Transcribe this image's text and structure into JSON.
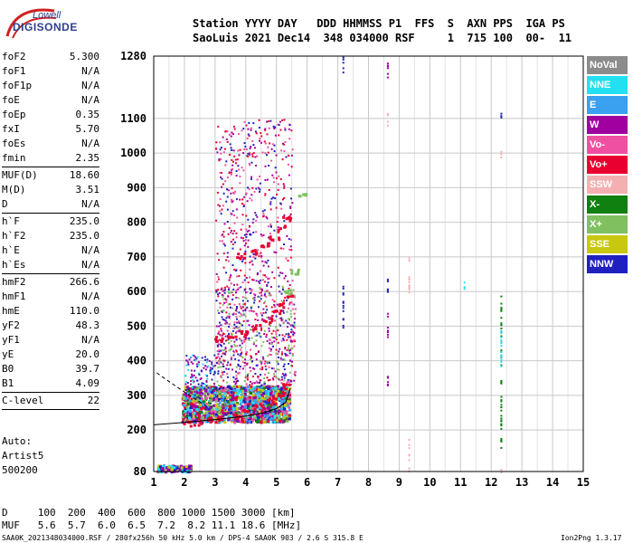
{
  "logo": {
    "line1": "Lowell",
    "line2": "DIGISONDE"
  },
  "header": {
    "line1": "Station YYYY DAY   DDD HHMMSS P1  FFS  S  AXN PPS  IGA PS",
    "line2": "SaoLuis 2021 Dec14  348 034000 RSF     1  715 100  00-  11"
  },
  "params": [
    {
      "label": "foF2",
      "value": "5.300"
    },
    {
      "label": "foF1",
      "value": "N/A"
    },
    {
      "label": "foF1p",
      "value": "N/A"
    },
    {
      "label": "foE",
      "value": "N/A"
    },
    {
      "label": "foEp",
      "value": "0.35"
    },
    {
      "label": "fxI",
      "value": "5.70"
    },
    {
      "label": "foEs",
      "value": "N/A"
    },
    {
      "label": "fmin",
      "value": "2.35"
    },
    {
      "sep": true
    },
    {
      "label": "MUF(D)",
      "value": "18.60"
    },
    {
      "label": "M(D)",
      "value": "3.51"
    },
    {
      "label": "D",
      "value": "N/A"
    },
    {
      "sep": true
    },
    {
      "label": "h`F",
      "value": "235.0"
    },
    {
      "label": "h`F2",
      "value": "235.0"
    },
    {
      "label": "h`E",
      "value": "N/A"
    },
    {
      "label": "h`Es",
      "value": "N/A"
    },
    {
      "sep": true
    },
    {
      "label": "hmF2",
      "value": "266.6"
    },
    {
      "label": "hmF1",
      "value": "N/A"
    },
    {
      "label": "hmE",
      "value": "110.0"
    },
    {
      "label": "yF2",
      "value": "48.3"
    },
    {
      "label": "yF1",
      "value": "N/A"
    },
    {
      "label": "yE",
      "value": "20.0"
    },
    {
      "label": "B0",
      "value": "39.7"
    },
    {
      "label": "B1",
      "value": "4.09"
    },
    {
      "sep": true
    },
    {
      "label": "C-level",
      "value": "22"
    },
    {
      "sep": true
    }
  ],
  "auto": {
    "line1": "Auto:",
    "line2": "Artist5",
    "line3": "500200"
  },
  "legend": [
    {
      "label": "NoVal",
      "color": "#8c8c8c"
    },
    {
      "label": "NNE",
      "color": "#22e0f0"
    },
    {
      "label": "E",
      "color": "#3aa0f0"
    },
    {
      "label": "W",
      "color": "#a000a0"
    },
    {
      "label": "Vo-",
      "color": "#f050a0"
    },
    {
      "label": "Vo+",
      "color": "#e80030"
    },
    {
      "label": "SSW",
      "color": "#f4b0b0"
    },
    {
      "label": "X-",
      "color": "#108010"
    },
    {
      "label": "X+",
      "color": "#80c060"
    },
    {
      "label": "SSE",
      "color": "#c8c810"
    },
    {
      "label": "NNW",
      "color": "#2020c0"
    }
  ],
  "bottom": {
    "d_row": "D     100  200  400  600  800 1000 1500 3000 [km]",
    "muf_row": "MUF   5.6  5.7  6.0  6.5  7.2  8.2 11.1 18.6 [MHz]",
    "footer_left": "SAA0K_2021348034000.RSF / 280fx256h 50 kHz 5.0 km / DPS-4 SAA0K 903 / 2.6 S 315.8 E",
    "footer_right": "Ion2Png 1.3.17"
  },
  "chart_data": {
    "type": "scatter",
    "x_ticks": [
      1,
      2,
      3,
      4,
      5,
      6,
      7,
      8,
      9,
      10,
      11,
      12,
      13,
      14,
      15
    ],
    "y_ticks": [
      80,
      200,
      300,
      400,
      500,
      600,
      700,
      800,
      900,
      1000,
      1100,
      1280
    ],
    "xlim": [
      1,
      15
    ],
    "ylim": [
      80,
      1280
    ],
    "grid": true,
    "legend_position": "right",
    "traces": [
      {
        "color": "#e80030",
        "points": [
          [
            2.1,
            220
          ],
          [
            2.4,
            225
          ],
          [
            2.8,
            230
          ],
          [
            3.2,
            235
          ],
          [
            3.6,
            245
          ],
          [
            4.0,
            255
          ],
          [
            4.4,
            270
          ],
          [
            4.8,
            290
          ],
          [
            5.1,
            310
          ],
          [
            5.3,
            330
          ]
        ]
      },
      {
        "color": "#e80030",
        "points": [
          [
            3.1,
            465
          ],
          [
            3.5,
            470
          ],
          [
            3.9,
            485
          ],
          [
            4.3,
            500
          ],
          [
            4.7,
            520
          ],
          [
            5.0,
            545
          ],
          [
            5.2,
            565
          ],
          [
            5.4,
            590
          ]
        ]
      },
      {
        "color": "#e80030",
        "points": [
          [
            3.8,
            705
          ],
          [
            4.2,
            715
          ],
          [
            4.6,
            735
          ],
          [
            4.9,
            760
          ],
          [
            5.1,
            785
          ],
          [
            5.3,
            810
          ]
        ]
      },
      {
        "color": "#80c060",
        "points": [
          [
            5.3,
            600
          ],
          [
            5.6,
            660
          ],
          [
            5.8,
            880
          ]
        ]
      }
    ],
    "fitted_profile": [
      [
        1.0,
        215
      ],
      [
        2.0,
        222
      ],
      [
        3.0,
        230
      ],
      [
        4.0,
        240
      ],
      [
        4.6,
        250
      ],
      [
        5.0,
        262
      ],
      [
        5.3,
        280
      ],
      [
        5.45,
        320
      ]
    ]
  }
}
